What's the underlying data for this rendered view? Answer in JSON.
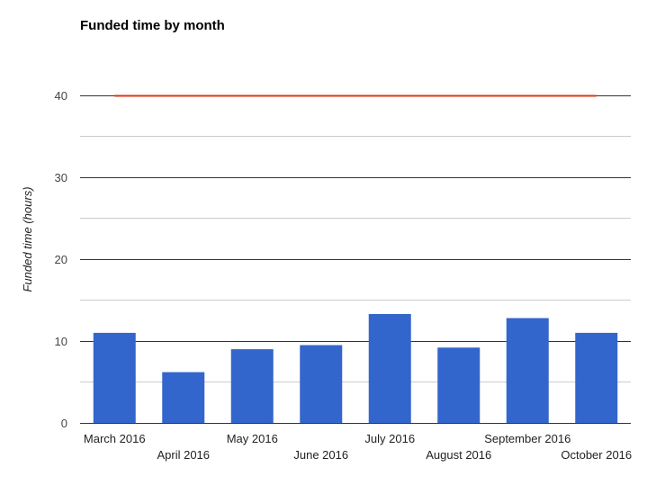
{
  "chart_data": {
    "type": "bar",
    "title": "Funded time by month",
    "xlabel": "",
    "ylabel": "Funded time (hours)",
    "categories": [
      "March 2016",
      "April 2016",
      "May 2016",
      "June 2016",
      "July 2016",
      "August 2016",
      "September 2016",
      "October 2016"
    ],
    "series": [
      {
        "values": [
          11.0,
          6.2,
          9.0,
          9.5,
          13.3,
          9.2,
          12.8,
          11.0
        ]
      }
    ],
    "reference_line": {
      "value": 40
    },
    "ylim": [
      0,
      40
    ],
    "yticks": [
      0,
      10,
      20,
      30,
      40
    ],
    "grid": true,
    "legend": "none",
    "colors": {
      "bar": "#3366cc",
      "reference_line": "#dc3912",
      "major_grid": "#333333",
      "minor_grid": "#cccccc"
    }
  }
}
